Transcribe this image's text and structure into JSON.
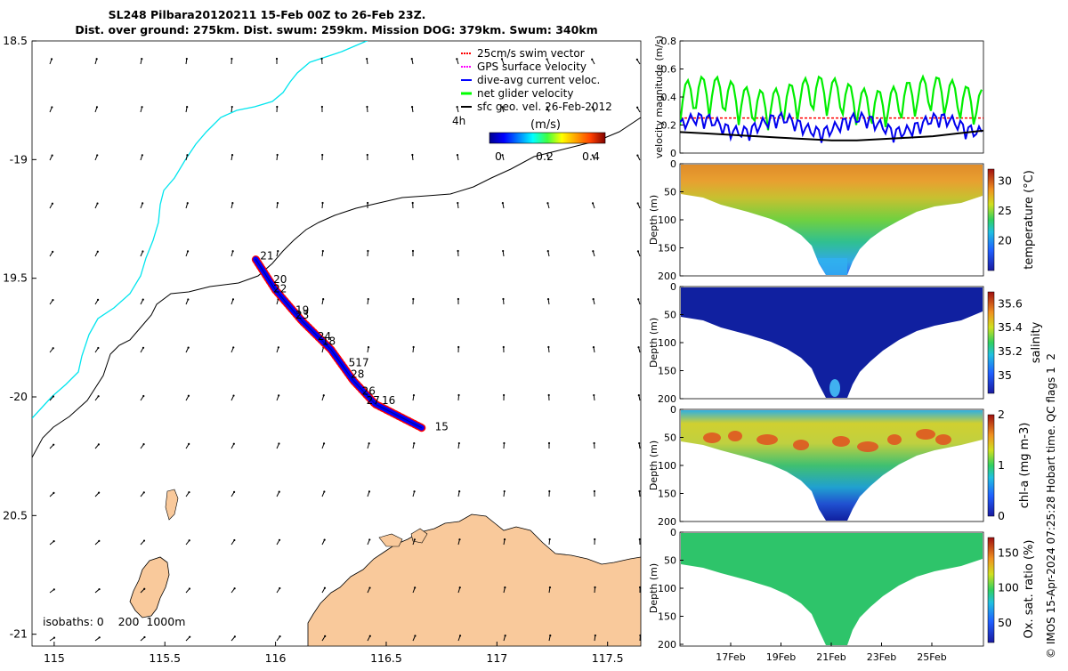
{
  "title": {
    "line1": "SL248 Pilbara20120211 15-Feb 00Z to 26-Feb 23Z.",
    "line2": "Dist. over ground: 275km. Dist. swum: 259km. Mission DOG: 379km. Swum: 340km"
  },
  "map": {
    "lon_ticks": [
      "115",
      "115.5",
      "116",
      "116.5",
      "117",
      "117.5"
    ],
    "lat_ticks": [
      "18.5",
      "-19",
      "19.5",
      "-20",
      "20.5",
      "-21"
    ],
    "lon_range": [
      114.9,
      117.65
    ],
    "lat_range": [
      -21.05,
      -18.5
    ],
    "legend": [
      {
        "label": "25cm/s swim vector",
        "color": "#ff0000"
      },
      {
        "label": "GPS surface velocity",
        "color": "#ff00ff"
      },
      {
        "label": "dive-avg current veloc.",
        "color": "#0000ff"
      },
      {
        "label": "net glider velocity",
        "color": "#00ff00"
      },
      {
        "label": "sfc geo. vel. 26-Feb-2012",
        "color": "#000000"
      }
    ],
    "legend_extra": "4h",
    "colorbar": {
      "label": "(m/s)",
      "ticks": [
        "0",
        "0.2",
        "0.4"
      ],
      "range": [
        0,
        0.5
      ]
    },
    "isobaths_label": "isobaths: 0    200  1000m",
    "day_labels": [
      {
        "day": "21",
        "lon": 115.93,
        "lat": -19.42
      },
      {
        "day": "20",
        "lon": 115.99,
        "lat": -19.52
      },
      {
        "day": "22",
        "lon": 115.99,
        "lat": -19.56
      },
      {
        "day": "19",
        "lon": 116.09,
        "lat": -19.65
      },
      {
        "day": "23",
        "lon": 116.09,
        "lat": -19.67
      },
      {
        "day": "24",
        "lon": 116.19,
        "lat": -19.76
      },
      {
        "day": "18",
        "lon": 116.21,
        "lat": -19.78
      },
      {
        "day": "517",
        "lon": 116.33,
        "lat": -19.87
      },
      {
        "day": "28",
        "lon": 116.34,
        "lat": -19.92
      },
      {
        "day": "26",
        "lon": 116.39,
        "lat": -19.99
      },
      {
        "day": "27",
        "lon": 116.41,
        "lat": -20.03
      },
      {
        "day": "16",
        "lon": 116.48,
        "lat": -20.03
      },
      {
        "day": "15",
        "lon": 116.72,
        "lat": -20.14
      }
    ]
  },
  "panels": {
    "velocity": {
      "ylabel": "velocity magnitude (m/s)",
      "yticks": [
        "0",
        "0.2",
        "0.4",
        "0.6",
        "0.8"
      ]
    },
    "temperature": {
      "ylabel": "Depth (m)",
      "cblabel": "temperature (°C)",
      "cbticks": [
        "20",
        "25",
        "30"
      ],
      "yticks": [
        "0",
        "50",
        "100",
        "150",
        "200"
      ]
    },
    "salinity": {
      "ylabel": "Depth (m)",
      "cblabel": "salinity",
      "cbticks": [
        "35",
        "35.2",
        "35.4",
        "35.6"
      ],
      "yticks": [
        "0",
        "50",
        "100",
        "150",
        "200"
      ]
    },
    "chla": {
      "ylabel": "Depth (m)",
      "cblabel": "chl-a (mg m-3)",
      "cbticks": [
        "0",
        "1",
        "2"
      ],
      "yticks": [
        "0",
        "50",
        "100",
        "150",
        "200"
      ]
    },
    "oxygen": {
      "ylabel": "Depth (m)",
      "cblabel": "Ox. sat. ratio (%)",
      "cbticks": [
        "50",
        "100",
        "150"
      ],
      "yticks": [
        "0",
        "50",
        "100",
        "150",
        "200"
      ]
    }
  },
  "time_ticks": [
    "17Feb",
    "19Feb",
    "21Feb",
    "23Feb",
    "25Feb"
  ],
  "credit": "© IMOS 15-Apr-2024 07:25:28 Hobart time. QC flags 1  2",
  "chart_data": [
    {
      "type": "scatter",
      "title": "SL248 Pilbara20120211 15-Feb 00Z to 26-Feb 23Z.",
      "description": "glider track map",
      "xlim": [
        114.9,
        117.65
      ],
      "ylim": [
        -21.05,
        -18.5
      ],
      "track": [
        [
          116.66,
          -20.13
        ],
        [
          116.45,
          -20.03
        ],
        [
          116.35,
          -19.93
        ],
        [
          116.25,
          -19.8
        ],
        [
          116.12,
          -19.68
        ],
        [
          116.0,
          -19.55
        ],
        [
          115.91,
          -19.42
        ]
      ]
    },
    {
      "type": "line",
      "ylabel": "velocity magnitude (m/s)",
      "ylim": [
        0,
        0.8
      ],
      "x_range": [
        "15-Feb",
        "27-Feb"
      ],
      "series": [
        {
          "name": "net glider velocity",
          "color": "#00ff00"
        },
        {
          "name": "dive-avg current veloc.",
          "color": "#0000ff"
        },
        {
          "name": "sfc geo. vel. 26-Feb-2012",
          "color": "#000000",
          "values": [
            0.15,
            0.14,
            0.13,
            0.12,
            0.11,
            0.1,
            0.09,
            0.09,
            0.1,
            0.11,
            0.12,
            0.14,
            0.16
          ]
        },
        {
          "name": "25cm/s swim vector",
          "color": "#ff0000",
          "values": [
            0.25
          ]
        }
      ]
    },
    {
      "type": "heatmap",
      "ylabel": "Depth (m)",
      "cblabel": "temperature (°C)",
      "ylim": [
        200,
        0
      ],
      "clim": [
        15,
        32
      ]
    },
    {
      "type": "heatmap",
      "ylabel": "Depth (m)",
      "cblabel": "salinity",
      "ylim": [
        200,
        0
      ],
      "clim": [
        34.8,
        35.7
      ]
    },
    {
      "type": "heatmap",
      "ylabel": "Depth (m)",
      "cblabel": "chl-a (mg m-3)",
      "ylim": [
        200,
        0
      ],
      "clim": [
        0,
        2
      ]
    },
    {
      "type": "heatmap",
      "ylabel": "Depth (m)",
      "cblabel": "Ox. sat. ratio (%)",
      "ylim": [
        200,
        0
      ],
      "clim": [
        20,
        170
      ]
    }
  ]
}
